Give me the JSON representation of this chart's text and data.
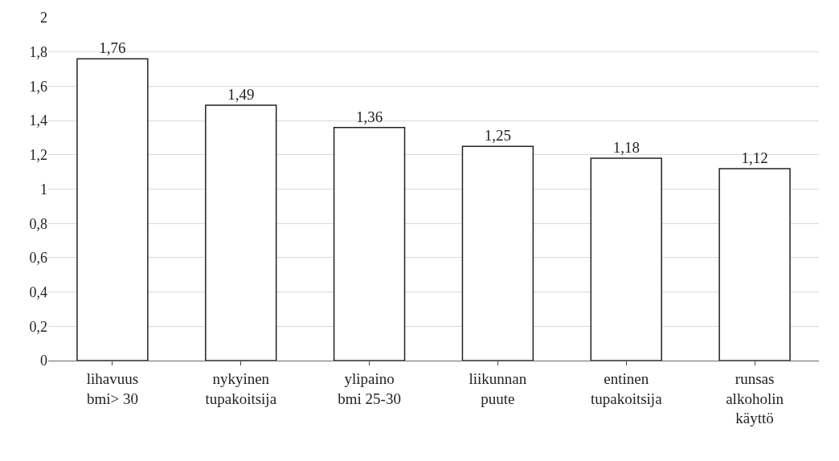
{
  "chart_data": {
    "type": "bar",
    "categories": [
      "lihavuus\nbmi> 30",
      "nykyinen\ntupakoitsija",
      "ylipaino\nbmi 25-30",
      "liikunnan\npuute",
      "entinen\ntupakoitsija",
      "runsas\nalkoholin\nkäyttö"
    ],
    "values": [
      1.76,
      1.49,
      1.36,
      1.25,
      1.18,
      1.12
    ],
    "value_labels": [
      "1,76",
      "1,49",
      "1,36",
      "1,25",
      "1,18",
      "1,12"
    ],
    "color": "#ffffff",
    "ylim": [
      0,
      2
    ],
    "yticks": [
      0,
      {
        "value": 0.2,
        "label": "0,2"
      },
      {
        "value": 0.4,
        "label": "0,4"
      },
      {
        "value": 0.6,
        "label": "0,6"
      },
      {
        "value": 0.8,
        "label": "0,8"
      },
      1,
      {
        "value": 1.2,
        "label": "1,2"
      },
      {
        "value": 1.4,
        "label": "1,4"
      },
      {
        "value": 1.6,
        "label": "1,6"
      },
      {
        "value": 1.8,
        "label": "1,8"
      },
      2
    ],
    "grid": "y"
  }
}
